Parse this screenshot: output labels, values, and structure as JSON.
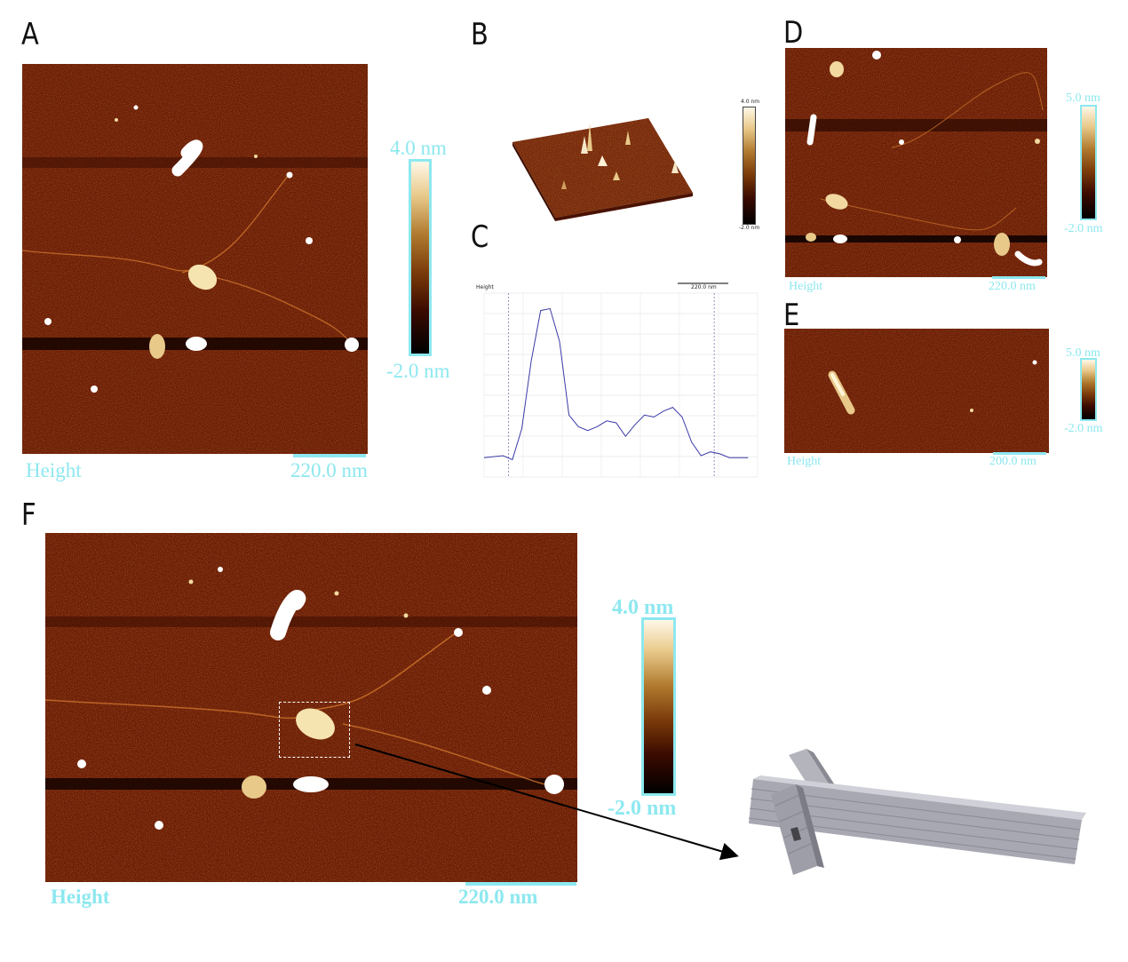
{
  "panels": {
    "A": {
      "letter": "A",
      "height_label": "Height",
      "scale_label": "220.0 nm",
      "cbar_top": "4.0 nm",
      "cbar_bottom": "-2.0 nm"
    },
    "B": {
      "letter": "B",
      "cbar_top": "4.0 nm",
      "cbar_bottom": "-2.0 nm"
    },
    "C": {
      "letter": "C",
      "axis_title": "Height",
      "scale_label": "220.0 nm"
    },
    "D": {
      "letter": "D",
      "height_label": "Height",
      "scale_label": "220.0 nm",
      "cbar_top": "5.0 nm",
      "cbar_bottom": "-2.0 nm"
    },
    "E": {
      "letter": "E",
      "height_label": "Height",
      "scale_label": "200.0 nm",
      "cbar_top": "5.0 nm",
      "cbar_bottom": "-2.0 nm"
    },
    "F": {
      "letter": "F",
      "height_label": "Height",
      "scale_label": "220.0 nm",
      "cbar_top": "4.0 nm",
      "cbar_bottom": "-2.0 nm"
    }
  },
  "colors": {
    "label_cyan": "#8de8ef",
    "afm_background": "#6e1e06",
    "profile_line": "#3a3aa8"
  },
  "chart_data": {
    "type": "line",
    "title": "",
    "ylabel": "Height",
    "xlabel": "",
    "grid": true,
    "x": [
      0,
      10,
      15,
      20,
      25,
      30,
      35,
      40,
      45,
      50,
      55,
      60,
      65,
      70,
      75,
      80,
      85,
      90,
      95,
      100,
      105,
      110,
      115,
      120,
      125,
      130,
      135,
      140
    ],
    "values": [
      0.5,
      0.6,
      0.4,
      2.0,
      5.5,
      8.1,
      8.2,
      6.5,
      2.7,
      2.1,
      1.9,
      2.1,
      2.4,
      2.3,
      1.6,
      2.2,
      2.7,
      2.6,
      2.9,
      3.1,
      2.6,
      1.3,
      0.6,
      0.8,
      0.7,
      0.5,
      0.5,
      0.5
    ],
    "cursor_x": [
      13,
      122
    ],
    "ylim": [
      -0.5,
      9
    ],
    "xlim": [
      0,
      145
    ]
  }
}
